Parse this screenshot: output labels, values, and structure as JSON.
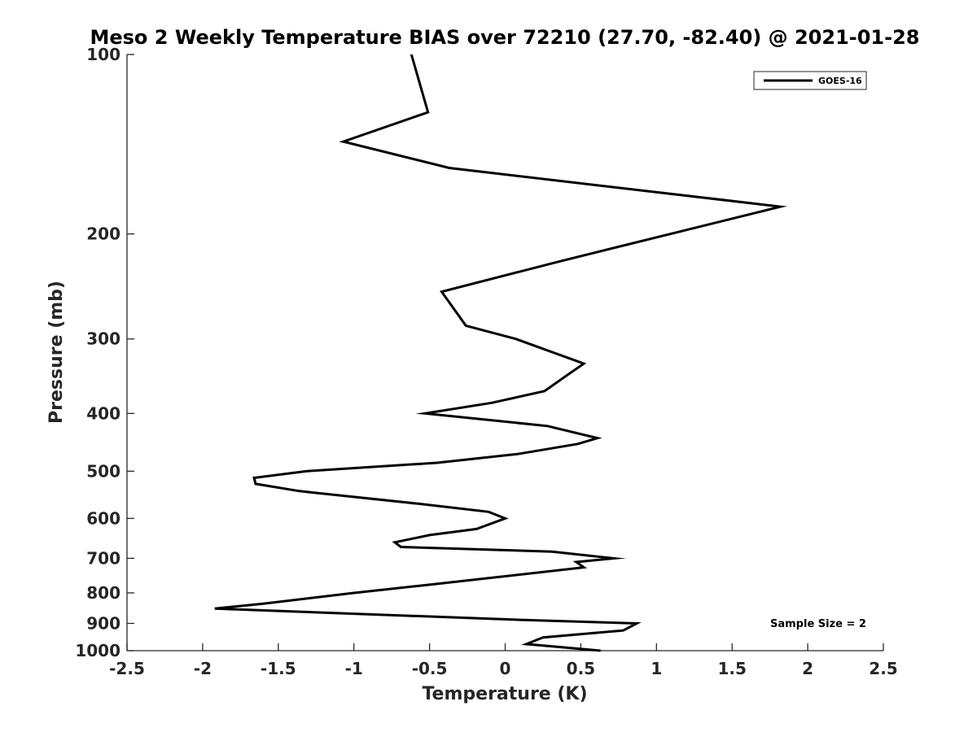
{
  "chart_data": {
    "type": "line",
    "title": "Meso 2 Weekly Temperature BIAS over 72210 (27.70, -82.40) @ 2021-01-28",
    "xlabel": "Temperature (K)",
    "ylabel": "Pressure (mb)",
    "xlim": [
      -2.5,
      2.5
    ],
    "ylim": [
      1000,
      100
    ],
    "y_scale": "log",
    "x_ticks": [
      -2.5,
      -2,
      -1.5,
      -1,
      -0.5,
      0,
      0.5,
      1,
      1.5,
      2,
      2.5
    ],
    "x_tick_labels": [
      "-2.5",
      "-2",
      "-1.5",
      "-1",
      "-0.5",
      "0",
      "0.5",
      "1",
      "1.5",
      "2",
      "2.5"
    ],
    "y_ticks": [
      100,
      200,
      300,
      400,
      500,
      600,
      700,
      800,
      900,
      1000
    ],
    "y_tick_labels": [
      "100",
      "200",
      "300",
      "400",
      "500",
      "600",
      "700",
      "800",
      "900",
      "1000"
    ],
    "grid": false,
    "legend_position": "top-right",
    "annotation": "Sample Size = 2",
    "series": [
      {
        "name": "GOES-16",
        "color": "#000000",
        "points": [
          {
            "t": 0.63,
            "p": 1000
          },
          {
            "t": 0.14,
            "p": 975
          },
          {
            "t": 0.25,
            "p": 950
          },
          {
            "t": 0.78,
            "p": 925
          },
          {
            "t": 0.87,
            "p": 900
          },
          {
            "t": 0.05,
            "p": 887
          },
          {
            "t": -1.92,
            "p": 850
          },
          {
            "t": -1.6,
            "p": 834
          },
          {
            "t": -1.0,
            "p": 800
          },
          {
            "t": -0.5,
            "p": 775
          },
          {
            "t": 0.52,
            "p": 725
          },
          {
            "t": 0.47,
            "p": 710
          },
          {
            "t": 0.72,
            "p": 700
          },
          {
            "t": 0.31,
            "p": 682
          },
          {
            "t": -0.69,
            "p": 670
          },
          {
            "t": -0.73,
            "p": 658
          },
          {
            "t": -0.5,
            "p": 640
          },
          {
            "t": -0.19,
            "p": 625
          },
          {
            "t": 0.0,
            "p": 600
          },
          {
            "t": -0.11,
            "p": 585
          },
          {
            "t": -0.57,
            "p": 567
          },
          {
            "t": -1.36,
            "p": 540
          },
          {
            "t": -1.65,
            "p": 525
          },
          {
            "t": -1.66,
            "p": 513
          },
          {
            "t": -1.31,
            "p": 500
          },
          {
            "t": -0.45,
            "p": 484
          },
          {
            "t": 0.08,
            "p": 468
          },
          {
            "t": 0.48,
            "p": 450
          },
          {
            "t": 0.61,
            "p": 440
          },
          {
            "t": 0.28,
            "p": 420
          },
          {
            "t": -0.53,
            "p": 400
          },
          {
            "t": -0.09,
            "p": 384
          },
          {
            "t": 0.26,
            "p": 367
          },
          {
            "t": 0.41,
            "p": 345
          },
          {
            "t": 0.52,
            "p": 330
          },
          {
            "t": 0.07,
            "p": 300
          },
          {
            "t": -0.26,
            "p": 285
          },
          {
            "t": -0.42,
            "p": 250
          },
          {
            "t": 0.37,
            "p": 222
          },
          {
            "t": 1.82,
            "p": 180
          },
          {
            "t": -0.37,
            "p": 155
          },
          {
            "t": -1.07,
            "p": 140
          },
          {
            "t": -0.51,
            "p": 125
          },
          {
            "t": -0.62,
            "p": 100
          }
        ]
      }
    ]
  }
}
